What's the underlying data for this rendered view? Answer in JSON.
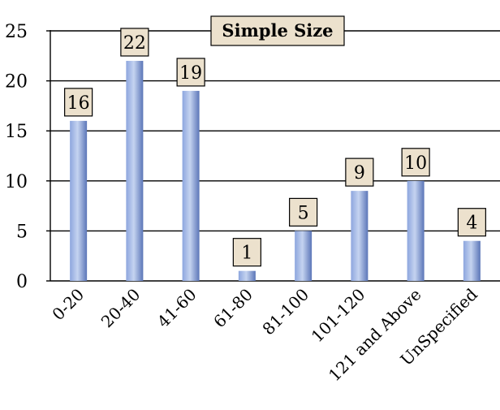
{
  "chart_data": {
    "type": "bar",
    "title": "Simple Size",
    "categories": [
      "0-20",
      "20-40",
      "41-60",
      "61-80",
      "81-100",
      "101-120",
      "121 and Above",
      "UnSpecified"
    ],
    "values": [
      16,
      22,
      19,
      1,
      5,
      9,
      10,
      4
    ],
    "ylim": [
      0,
      25
    ],
    "yticks": [
      0,
      5,
      10,
      15,
      20,
      25
    ],
    "xlabel": "",
    "ylabel": "",
    "grid": true,
    "legend": "none",
    "colors": {
      "bar_light": "#c5d3f0",
      "bar_mid": "#8da6de",
      "bar_dark": "#5b76b8",
      "label_fill": "#ece1cd",
      "label_border": "#000000",
      "grid": "#000000",
      "axis": "#000000"
    }
  }
}
